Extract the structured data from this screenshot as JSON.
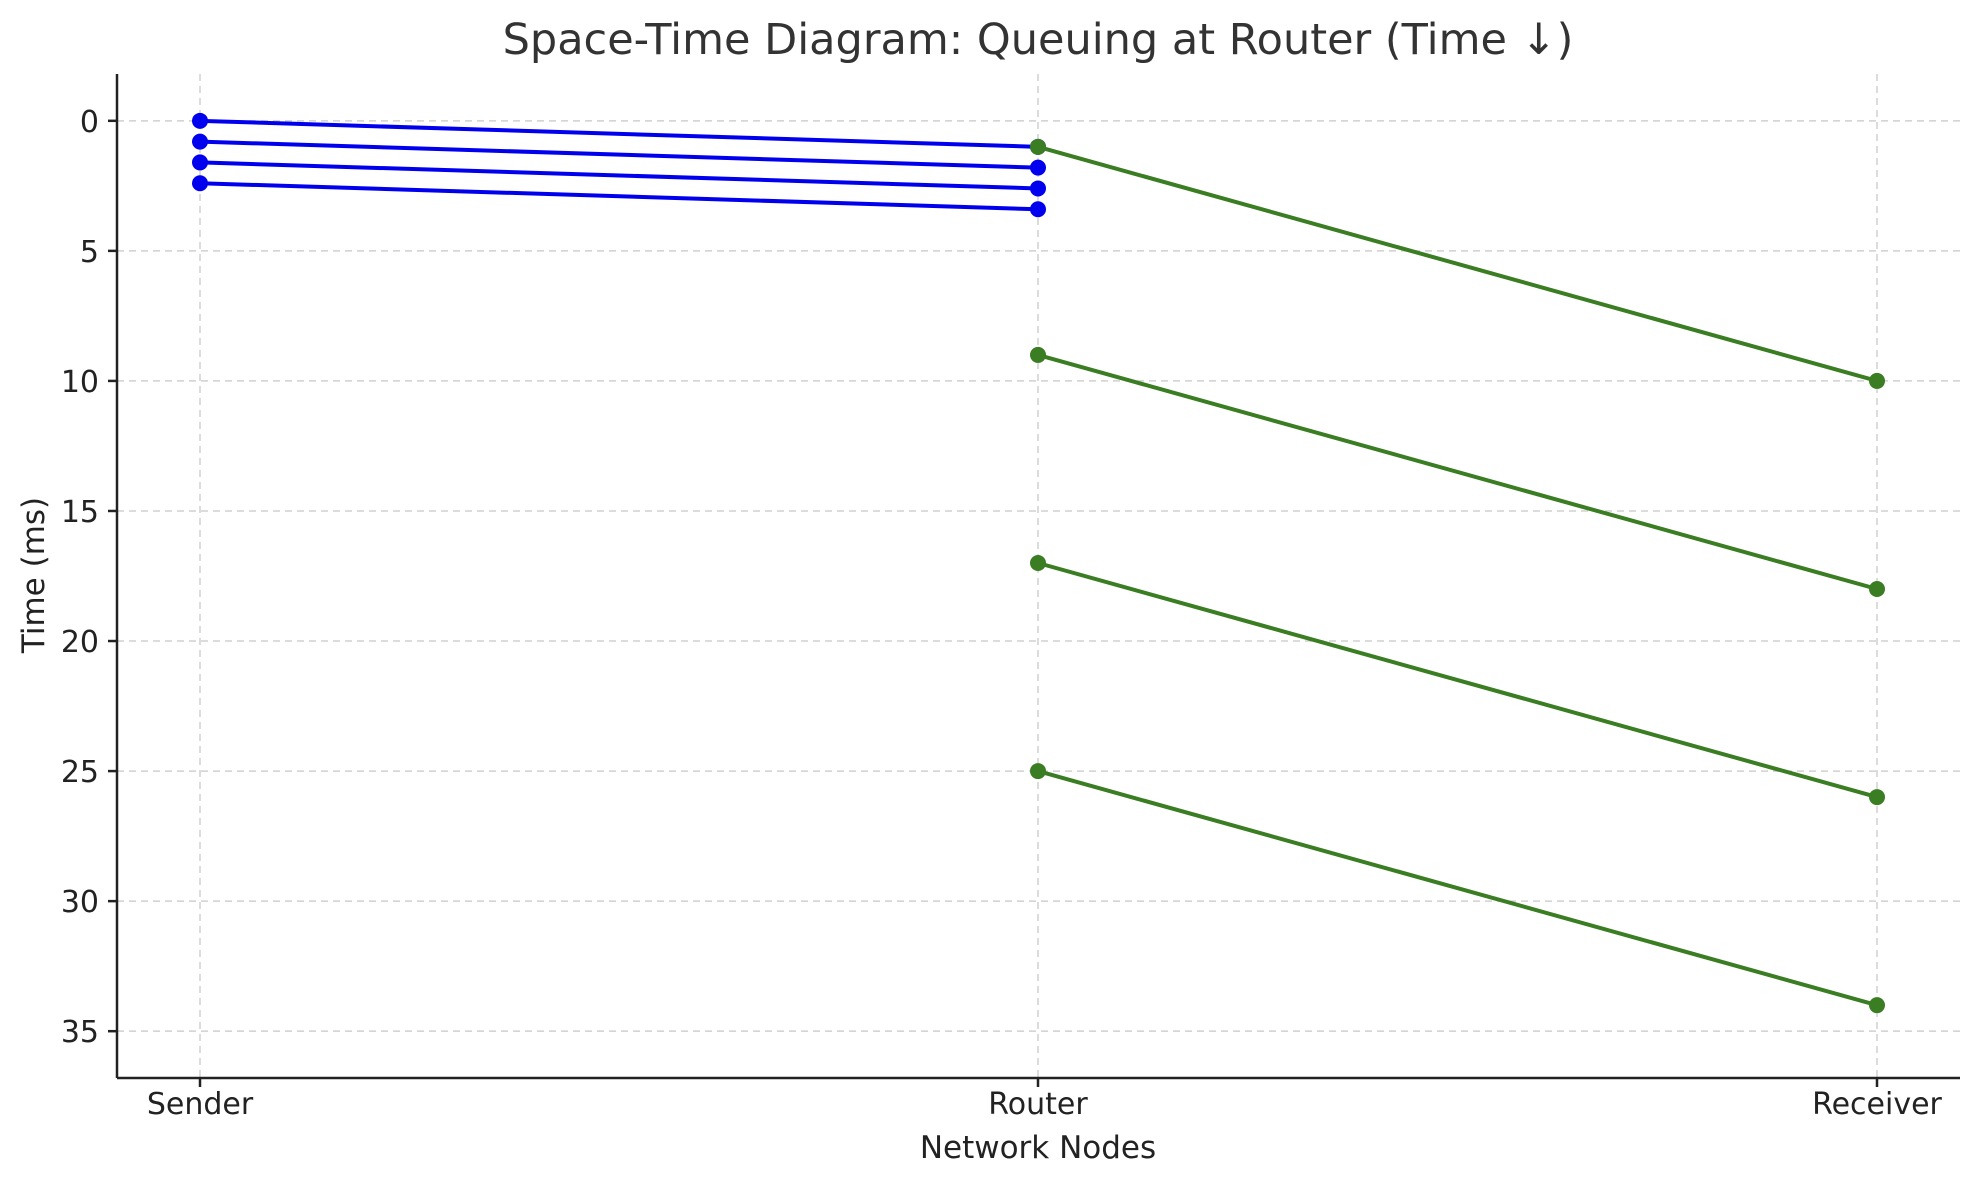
{
  "chart_data": {
    "type": "line",
    "title": "Space-Time Diagram: Queuing at Router (Time ↓)",
    "xlabel": "Network Nodes",
    "ylabel": "Time (ms)",
    "categories": [
      "Sender",
      "Router",
      "Receiver"
    ],
    "ylim": [
      36.8,
      -1.8
    ],
    "y_inverted": true,
    "yticks": [
      0,
      5,
      10,
      15,
      20,
      25,
      30,
      35
    ],
    "grid": true,
    "series": [
      {
        "color": "#0000ee",
        "points": [
          {
            "x": "Sender",
            "y": 0
          },
          {
            "x": "Router",
            "y": 1.0
          }
        ]
      },
      {
        "color": "#0000ee",
        "points": [
          {
            "x": "Sender",
            "y": 0.8
          },
          {
            "x": "Router",
            "y": 1.8
          }
        ]
      },
      {
        "color": "#0000ee",
        "points": [
          {
            "x": "Sender",
            "y": 1.6
          },
          {
            "x": "Router",
            "y": 2.6
          }
        ]
      },
      {
        "color": "#0000ee",
        "points": [
          {
            "x": "Sender",
            "y": 2.4
          },
          {
            "x": "Router",
            "y": 3.4
          }
        ]
      },
      {
        "color": "#3a7d22",
        "points": [
          {
            "x": "Router",
            "y": 1
          },
          {
            "x": "Receiver",
            "y": 10
          }
        ]
      },
      {
        "color": "#3a7d22",
        "points": [
          {
            "x": "Router",
            "y": 9
          },
          {
            "x": "Receiver",
            "y": 18
          }
        ]
      },
      {
        "color": "#3a7d22",
        "points": [
          {
            "x": "Router",
            "y": 17
          },
          {
            "x": "Receiver",
            "y": 26
          }
        ]
      },
      {
        "color": "#3a7d22",
        "points": [
          {
            "x": "Router",
            "y": 25
          },
          {
            "x": "Receiver",
            "y": 34
          }
        ]
      }
    ]
  }
}
